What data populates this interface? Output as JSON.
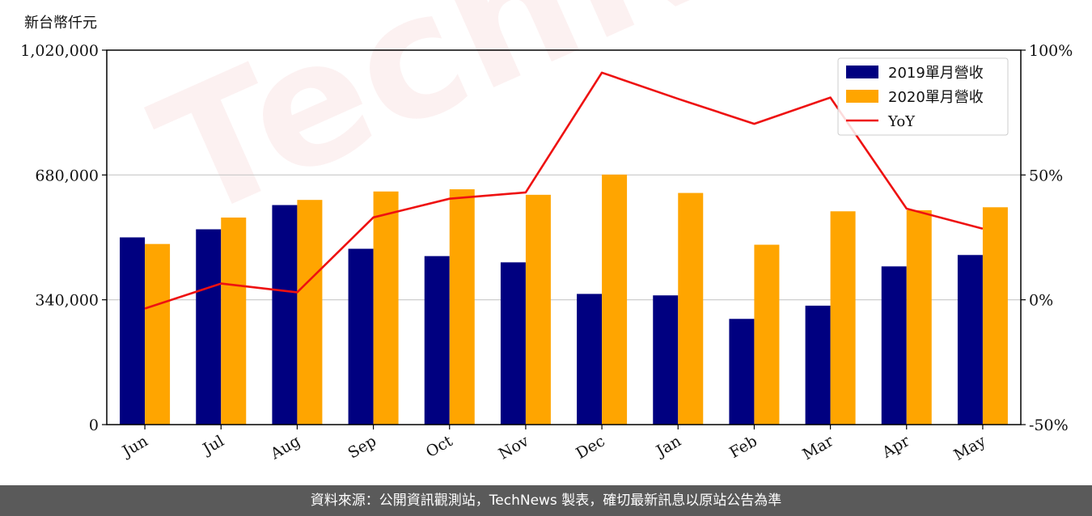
{
  "unit_label": "新台幣仟元",
  "footer_text": "資料來源：公開資訊觀測站，TechNews 製表，確切最新訊息以原站公告為準",
  "watermark_text": "TechNews",
  "colors": {
    "series_2019": "#000080",
    "series_2020": "#ffa500",
    "yoy": "#ee1111",
    "grid": "#c8c8c8",
    "footer_bg": "#5a5a5a"
  },
  "chart_data": {
    "type": "bar",
    "categories": [
      "Jun",
      "Jul",
      "Aug",
      "Sep",
      "Oct",
      "Nov",
      "Dec",
      "Jan",
      "Feb",
      "Mar",
      "Apr",
      "May"
    ],
    "series": [
      {
        "name": "2019單月營收",
        "values": [
          510000,
          532000,
          598000,
          479000,
          459000,
          442000,
          356000,
          352000,
          288000,
          324000,
          431000,
          462000
        ]
      },
      {
        "name": "2020單月營收",
        "values": [
          492000,
          564000,
          612000,
          635000,
          641000,
          626000,
          681000,
          631000,
          490000,
          581000,
          584000,
          592000
        ]
      }
    ],
    "line_series": {
      "name": "YoY",
      "axis": "right",
      "values": [
        -3.5,
        6.5,
        3,
        33,
        40.5,
        43,
        91,
        80.5,
        70.5,
        81,
        36.5,
        28.5
      ]
    },
    "yticks_left": [
      "0",
      "340,000",
      "680,000",
      "1,020,000"
    ],
    "yticks_right": [
      "-50%",
      "0%",
      "50%",
      "100%"
    ],
    "ylim": [
      0,
      1020000
    ],
    "ylim_right": [
      -50,
      100
    ],
    "grid": "horizontal",
    "legend_position": "top-right"
  }
}
